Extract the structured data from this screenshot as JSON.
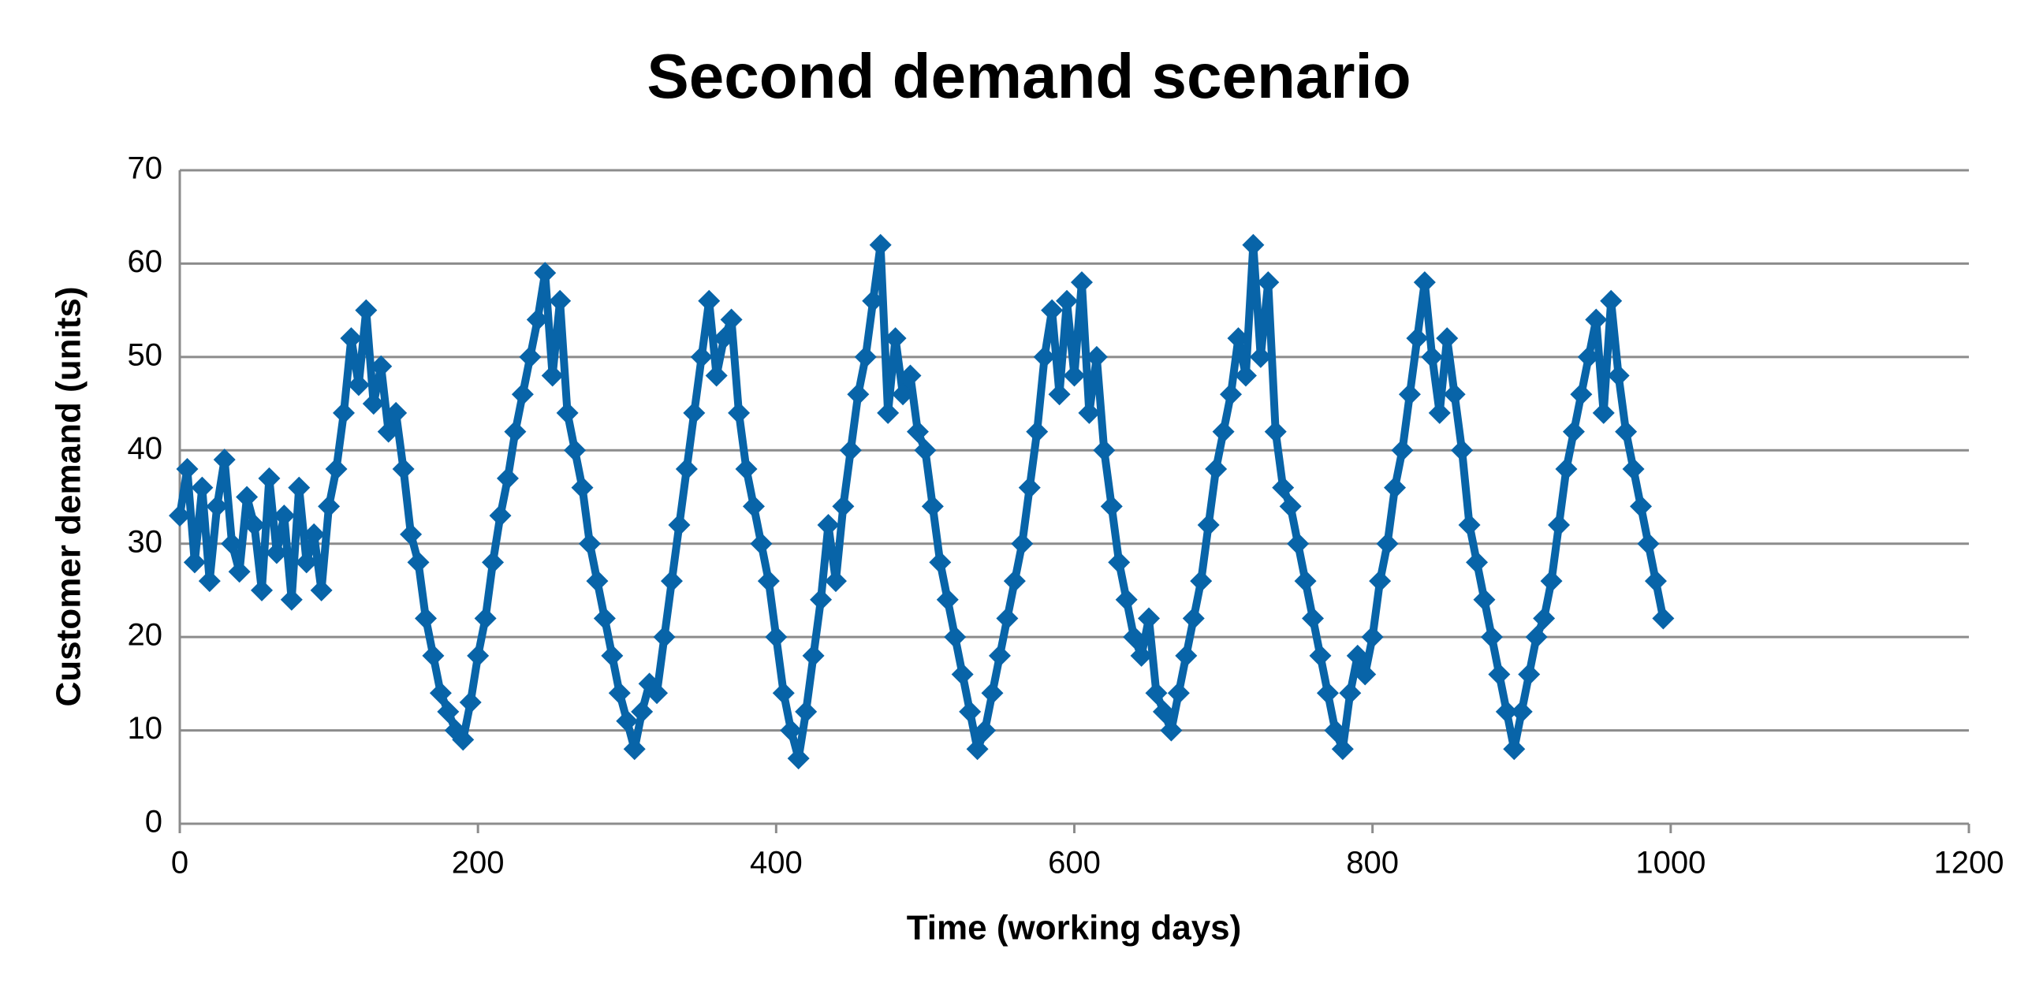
{
  "chart_data": {
    "type": "line",
    "title": "Second demand scenario",
    "x_label": "Time (working days)",
    "y_label": "Customer demand (units)",
    "xlim": [
      0,
      1200
    ],
    "xticks": [
      0,
      200,
      400,
      600,
      800,
      1000,
      1200
    ],
    "ylim": [
      0,
      70
    ],
    "yticks": [
      0,
      10,
      20,
      30,
      40,
      50,
      60,
      70
    ],
    "grid": true,
    "markers": "diamond",
    "x": [
      0,
      5,
      10,
      15,
      20,
      25,
      30,
      35,
      40,
      45,
      50,
      55,
      60,
      65,
      70,
      75,
      80,
      85,
      90,
      95,
      100,
      105,
      110,
      115,
      120,
      125,
      130,
      135,
      140,
      145,
      150,
      155,
      160,
      165,
      170,
      175,
      180,
      185,
      190,
      195,
      200,
      205,
      210,
      215,
      220,
      225,
      230,
      235,
      240,
      245,
      250,
      255,
      260,
      265,
      270,
      275,
      280,
      285,
      290,
      295,
      300,
      305,
      310,
      315,
      320,
      325,
      330,
      335,
      340,
      345,
      350,
      355,
      360,
      365,
      370,
      375,
      380,
      385,
      390,
      395,
      400,
      405,
      410,
      415,
      420,
      425,
      430,
      435,
      440,
      445,
      450,
      455,
      460,
      465,
      470,
      475,
      480,
      485,
      490,
      495,
      500,
      505,
      510,
      515,
      520,
      525,
      530,
      535,
      540,
      545,
      550,
      555,
      560,
      565,
      570,
      575,
      580,
      585,
      590,
      595,
      600,
      605,
      610,
      615,
      620,
      625,
      630,
      635,
      640,
      645,
      650,
      655,
      660,
      665,
      670,
      675,
      680,
      685,
      690,
      695,
      700,
      705,
      710,
      715,
      720,
      725,
      730,
      735,
      740,
      745,
      750,
      755,
      760,
      765,
      770,
      775,
      780,
      785,
      790,
      795,
      800,
      805,
      810,
      815,
      820,
      825,
      830,
      835,
      840,
      845,
      850,
      855,
      860,
      865,
      870,
      875,
      880,
      885,
      890,
      895,
      900,
      905,
      910,
      915,
      920,
      925,
      930,
      935,
      940,
      945,
      950,
      955,
      960,
      965,
      970,
      975,
      980,
      985,
      990,
      995
    ],
    "series": [
      {
        "name": "Customer demand",
        "color": "#0864a8",
        "values": [
          33,
          38,
          28,
          36,
          26,
          34,
          39,
          30,
          27,
          35,
          32,
          25,
          37,
          29,
          33,
          24,
          36,
          28,
          31,
          25,
          34,
          38,
          44,
          52,
          47,
          55,
          45,
          49,
          42,
          44,
          38,
          31,
          28,
          22,
          18,
          14,
          12,
          10,
          9,
          13,
          18,
          22,
          28,
          33,
          37,
          42,
          46,
          50,
          54,
          59,
          48,
          56,
          44,
          40,
          36,
          30,
          26,
          22,
          18,
          14,
          11,
          8,
          12,
          15,
          14,
          20,
          26,
          32,
          38,
          44,
          50,
          56,
          48,
          52,
          54,
          44,
          38,
          34,
          30,
          26,
          20,
          14,
          10,
          7,
          12,
          18,
          24,
          32,
          26,
          34,
          40,
          46,
          50,
          56,
          62,
          44,
          52,
          46,
          48,
          42,
          40,
          34,
          28,
          24,
          20,
          16,
          12,
          8,
          10,
          14,
          18,
          22,
          26,
          30,
          36,
          42,
          50,
          55,
          46,
          56,
          48,
          58,
          44,
          50,
          40,
          34,
          28,
          24,
          20,
          18,
          22,
          14,
          12,
          10,
          14,
          18,
          22,
          26,
          32,
          38,
          42,
          46,
          52,
          48,
          62,
          50,
          58,
          42,
          36,
          34,
          30,
          26,
          22,
          18,
          14,
          10,
          8,
          14,
          18,
          16,
          20,
          26,
          30,
          36,
          40,
          46,
          52,
          58,
          50,
          44,
          52,
          46,
          40,
          32,
          28,
          24,
          20,
          16,
          12,
          8,
          12,
          16,
          20,
          22,
          26,
          32,
          38,
          42,
          46,
          50,
          54,
          44,
          56,
          48,
          42,
          38,
          34,
          30,
          26,
          22
        ]
      }
    ]
  }
}
